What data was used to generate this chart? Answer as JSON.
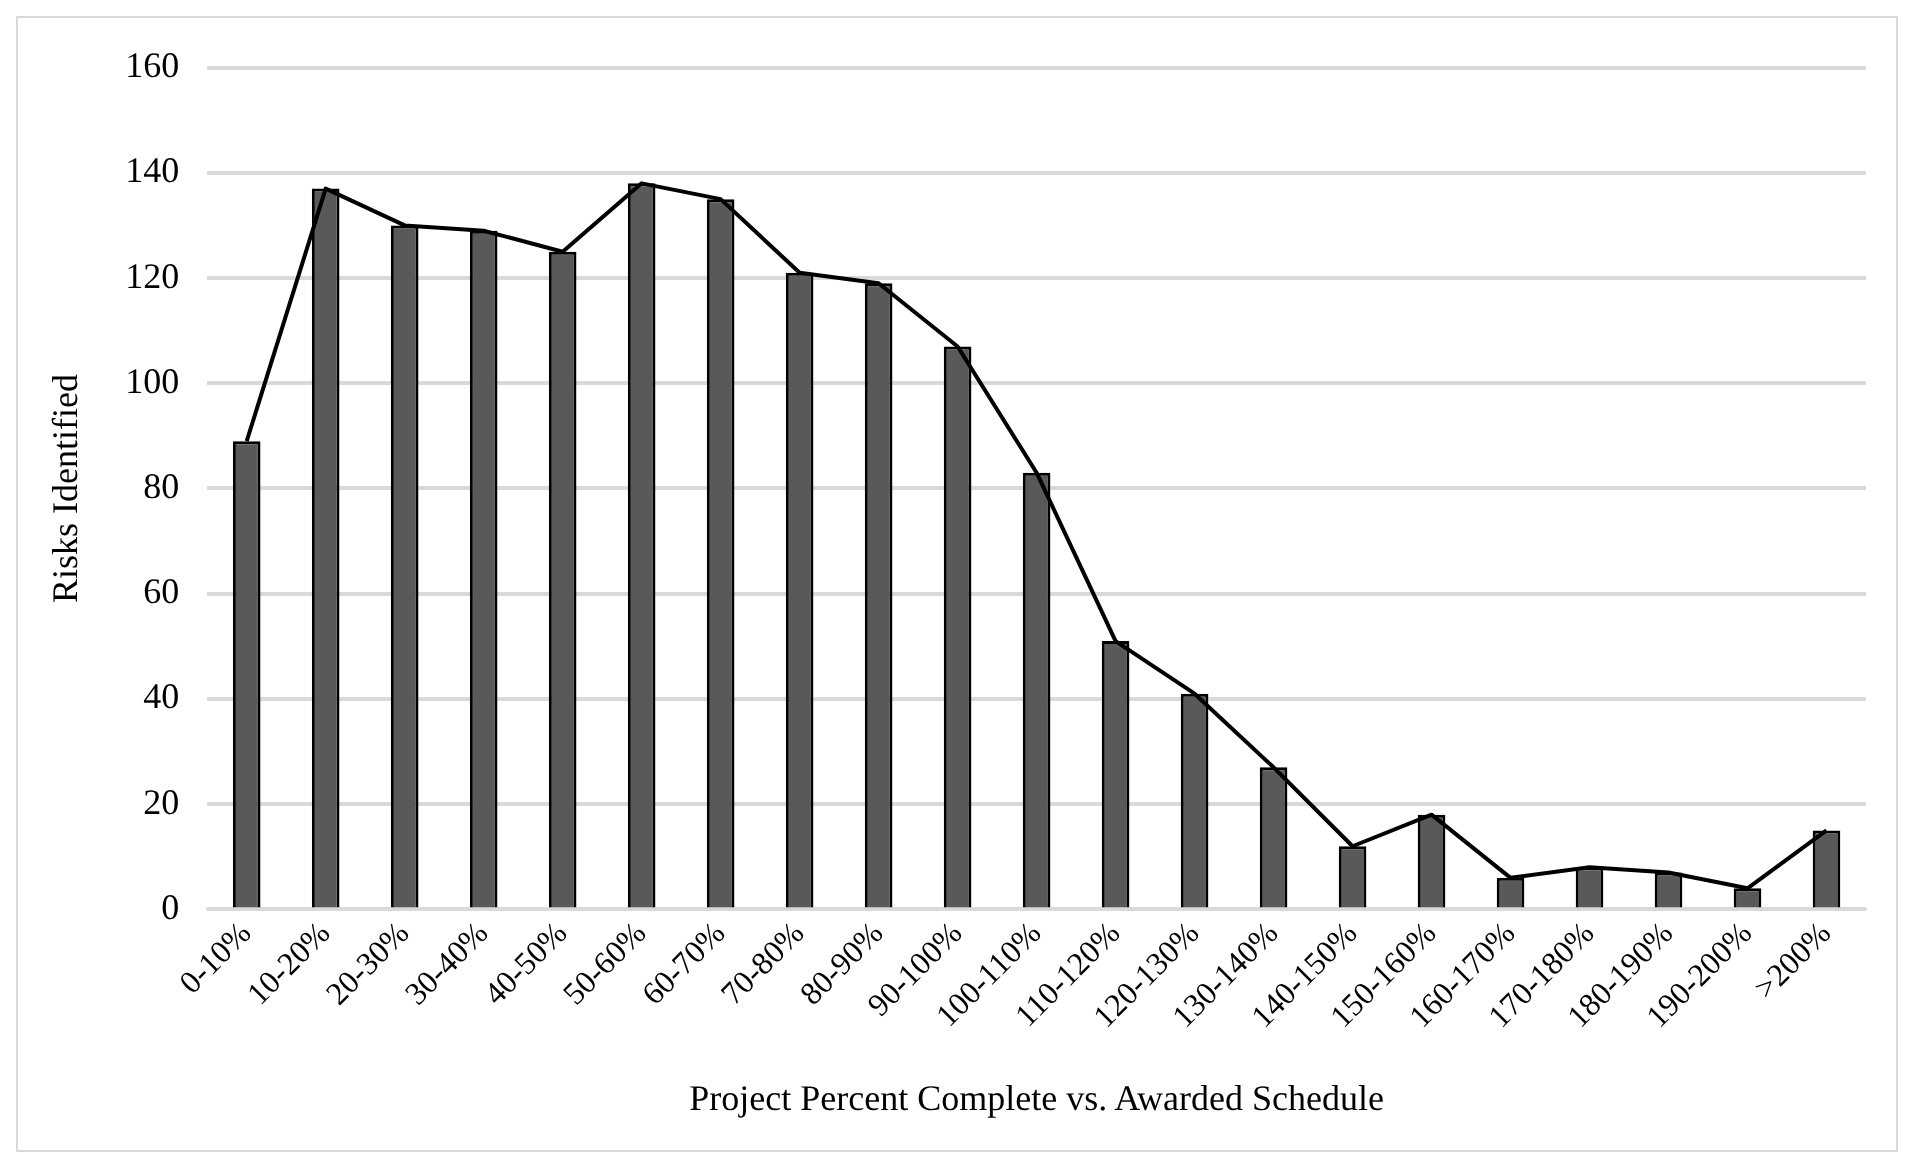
{
  "chart_data": {
    "type": "bar",
    "xlabel": "Project Percent Complete vs. Awarded Schedule",
    "ylabel": "Risks Identified",
    "categories": [
      "0-10%",
      "10-20%",
      "20-30%",
      "30-40%",
      "40-50%",
      "50-60%",
      "60-70%",
      "70-80%",
      "80-90%",
      "90-100%",
      "100-110%",
      "110-120%",
      "120-130%",
      "130-140%",
      "140-150%",
      "150-160%",
      "160-170%",
      "170-180%",
      "180-190%",
      "190-200%",
      ">200%"
    ],
    "series": [
      {
        "color": "#595959",
        "values": [
          89,
          137,
          130,
          129,
          125,
          138,
          135,
          121,
          119,
          107,
          83,
          51,
          41,
          27,
          12,
          18,
          6,
          8,
          7,
          4,
          15
        ]
      },
      {
        "type": "line",
        "color": "#000000",
        "values": [
          89,
          137,
          130,
          129,
          125,
          138,
          135,
          121,
          119,
          107,
          83,
          51,
          41,
          27,
          12,
          18,
          6,
          8,
          7,
          4,
          15
        ]
      }
    ],
    "ylim": [
      0,
      160
    ],
    "yticks": [
      0,
      20,
      40,
      60,
      80,
      100,
      120,
      140,
      160
    ],
    "grid": "y",
    "legend": false,
    "marker": "none",
    "line_style": "solid"
  }
}
